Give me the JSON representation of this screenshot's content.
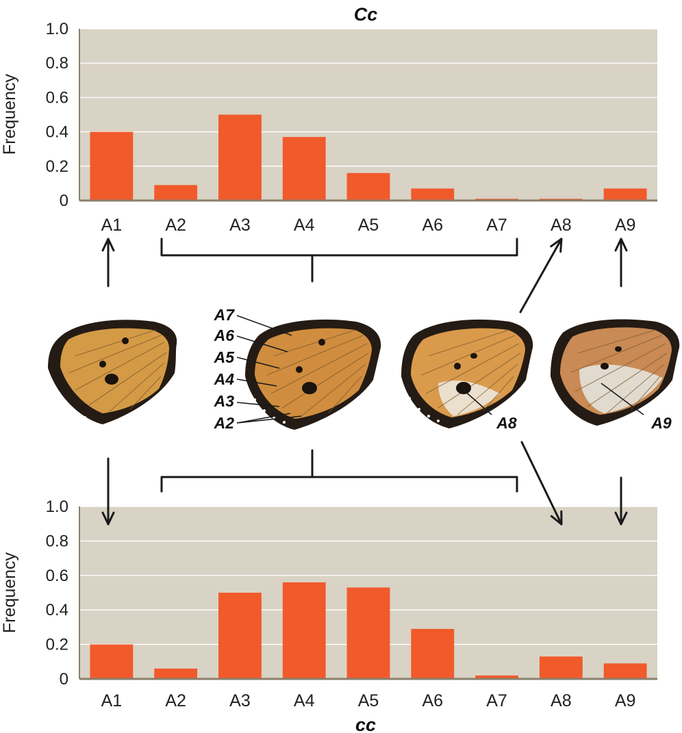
{
  "chart_data": [
    {
      "type": "bar",
      "title": "Cc",
      "ylabel": "Frequency",
      "xlabel": "",
      "categories": [
        "A1",
        "A2",
        "A3",
        "A4",
        "A5",
        "A6",
        "A7",
        "A8",
        "A9"
      ],
      "values": [
        0.4,
        0.09,
        0.5,
        0.37,
        0.16,
        0.07,
        0.01,
        0.01,
        0.07
      ],
      "ylim": [
        0,
        1.0
      ],
      "yticks": [
        "0",
        "0.2",
        "0.4",
        "0.6",
        "0.8",
        "1.0"
      ],
      "grid": true,
      "bar_color": "#f15a2b",
      "background_color": "#d9d3c5"
    },
    {
      "type": "bar",
      "title": "cc",
      "ylabel": "Frequency",
      "xlabel": "",
      "categories": [
        "A1",
        "A2",
        "A3",
        "A4",
        "A5",
        "A6",
        "A7",
        "A8",
        "A9"
      ],
      "values": [
        0.2,
        0.06,
        0.5,
        0.56,
        0.53,
        0.29,
        0.02,
        0.13,
        0.09
      ],
      "ylim": [
        0,
        1.0
      ],
      "yticks": [
        "0",
        "0.2",
        "0.4",
        "0.6",
        "0.8",
        "1.0"
      ],
      "grid": true,
      "bar_color": "#f15a2b",
      "background_color": "#d9d3c5"
    }
  ],
  "wing_labels": {
    "center": [
      "A7",
      "A6",
      "A5",
      "A4",
      "A3",
      "A2"
    ],
    "third": "A8",
    "fourth": "A9"
  },
  "colors": {
    "wing_orange": "#d98f3e",
    "wing_border": "#241b14",
    "wing_pale": "#e9e4d8"
  }
}
